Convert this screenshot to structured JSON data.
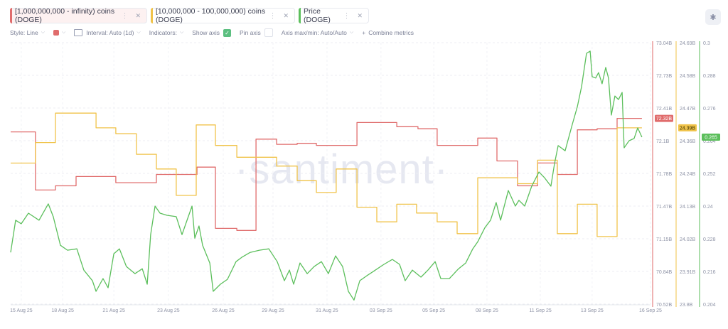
{
  "metrics": [
    {
      "label": "[1,000,000,000 - infinity) coins (DOGE)",
      "color": "#e06c6c"
    },
    {
      "label": "[10,000,000 - 100,000,000) coins (DOGE)",
      "color": "#f0c34a"
    },
    {
      "label": "Price (DOGE)",
      "color": "#5cbf5c"
    }
  ],
  "toolbar": {
    "style": "Style: Line",
    "interval": "Interval: Auto (1d)",
    "indicators": "Indicators:",
    "show_axis": "Show axis",
    "show_axis_checked": true,
    "pin_axis": "Pin axis",
    "pin_axis_checked": false,
    "axis_maxmin": "Axis max/min: Auto/Auto",
    "combine": "Combine metrics"
  },
  "watermark": "·santiment·",
  "chart_data": {
    "type": "line",
    "x_unit": "days since 15 Aug 25",
    "x_ticks": [
      {
        "label": "15 Aug 25",
        "x": 0.53
      },
      {
        "label": "18 Aug 25",
        "x": 2.6
      },
      {
        "label": "21 Aug 25",
        "x": 5.16
      },
      {
        "label": "23 Aug 25",
        "x": 7.89
      },
      {
        "label": "26 Aug 25",
        "x": 10.63
      },
      {
        "label": "29 Aug 25",
        "x": 13.12
      },
      {
        "label": "31 Aug 25",
        "x": 15.82
      },
      {
        "label": "03 Sep 25",
        "x": 18.52
      },
      {
        "label": "05 Sep 25",
        "x": 21.16
      },
      {
        "label": "08 Sep 25",
        "x": 23.82
      },
      {
        "label": "11 Sep 25",
        "x": 26.49
      },
      {
        "label": "13 Sep 25",
        "x": 29.08
      },
      {
        "label": "16 Sep 25",
        "x": 32
      }
    ],
    "xlim": [
      0,
      32
    ],
    "series": [
      {
        "name": "[1,000,000,000 - infinity) coins (DOGE)",
        "color": "#e06c6c",
        "step": true,
        "ylim": [
          70.52,
          73.04
        ],
        "y_ticks": [
          "73.04B",
          "72.73B",
          "72.41B",
          "72.1B",
          "71.78B",
          "71.47B",
          "71.15B",
          "70.84B",
          "70.52B"
        ],
        "last_label": "72.32B",
        "points": [
          [
            0,
            72.18
          ],
          [
            1.24,
            71.62
          ],
          [
            2.24,
            71.66
          ],
          [
            3.27,
            71.75
          ],
          [
            5.26,
            71.69
          ],
          [
            7.29,
            71.77
          ],
          [
            9.32,
            71.84
          ],
          [
            10.24,
            71.25
          ],
          [
            11.31,
            71.23
          ],
          [
            12.27,
            72.11
          ],
          [
            13.3,
            72.06
          ],
          [
            14.33,
            72.07
          ],
          [
            15.29,
            72.05
          ],
          [
            17.32,
            72.27
          ],
          [
            19.31,
            72.23
          ],
          [
            20.37,
            72.21
          ],
          [
            21.33,
            72.05
          ],
          [
            23.36,
            72.12
          ],
          [
            24.32,
            71.9
          ],
          [
            25.35,
            71.66
          ],
          [
            26.35,
            71.88
          ],
          [
            27.34,
            71.77
          ],
          [
            28.34,
            72.2
          ],
          [
            29.33,
            72.21
          ],
          [
            30.33,
            72.31
          ],
          [
            31.57,
            72.31
          ]
        ]
      },
      {
        "name": "[10,000,000 - 100,000,000) coins (DOGE)",
        "color": "#f0c34a",
        "step": true,
        "ylim": [
          23.8,
          24.69
        ],
        "y_ticks": [
          "24.69B",
          "24.58B",
          "24.47B",
          "24.36B",
          "24.24B",
          "24.13B",
          "24.02B",
          "23.91B",
          "23.8B"
        ],
        "last_label": "24.39B",
        "points": [
          [
            0,
            24.28
          ],
          [
            1.24,
            24.35
          ],
          [
            2.24,
            24.45
          ],
          [
            4.27,
            24.4
          ],
          [
            5.26,
            24.38
          ],
          [
            6.29,
            24.31
          ],
          [
            7.29,
            24.26
          ],
          [
            8.28,
            24.17
          ],
          [
            9.28,
            24.41
          ],
          [
            10.24,
            24.34
          ],
          [
            11.31,
            24.3
          ],
          [
            13.3,
            24.27
          ],
          [
            14.33,
            24.22
          ],
          [
            15.29,
            24.18
          ],
          [
            16.28,
            24.26
          ],
          [
            17.32,
            24.13
          ],
          [
            18.31,
            24.08
          ],
          [
            19.31,
            24.14
          ],
          [
            20.3,
            24.11
          ],
          [
            21.33,
            24.08
          ],
          [
            22.33,
            24.04
          ],
          [
            23.36,
            24.23
          ],
          [
            24.32,
            24.23
          ],
          [
            25.35,
            24.21
          ],
          [
            26.35,
            24.29
          ],
          [
            27.34,
            24.04
          ],
          [
            28.34,
            24.14
          ],
          [
            29.33,
            24.03
          ],
          [
            30.33,
            24.4
          ],
          [
            31.57,
            24.4
          ]
        ]
      },
      {
        "name": "Price (DOGE)",
        "color": "#5cbf5c",
        "step": false,
        "ylim": [
          0.204,
          0.3
        ],
        "y_ticks": [
          "0.3",
          "0.288",
          "0.276",
          "0.264",
          "0.252",
          "0.24",
          "0.228",
          "0.216",
          "0.204"
        ],
        "last_label": "0.265",
        "points": [
          [
            0,
            0.223
          ],
          [
            0.25,
            0.2348
          ],
          [
            0.53,
            0.2335
          ],
          [
            0.89,
            0.2374
          ],
          [
            1.42,
            0.2348
          ],
          [
            1.88,
            0.2408
          ],
          [
            2.13,
            0.2361
          ],
          [
            2.49,
            0.2256
          ],
          [
            2.84,
            0.2238
          ],
          [
            3.31,
            0.2243
          ],
          [
            3.66,
            0.2165
          ],
          [
            4.09,
            0.2126
          ],
          [
            4.27,
            0.2087
          ],
          [
            4.62,
            0.2134
          ],
          [
            4.87,
            0.21
          ],
          [
            5.16,
            0.2225
          ],
          [
            5.44,
            0.2243
          ],
          [
            5.79,
            0.2178
          ],
          [
            6.22,
            0.2152
          ],
          [
            6.58,
            0.217
          ],
          [
            6.83,
            0.2113
          ],
          [
            7.0,
            0.2295
          ],
          [
            7.22,
            0.24
          ],
          [
            7.47,
            0.2374
          ],
          [
            7.82,
            0.2366
          ],
          [
            8.28,
            0.2361
          ],
          [
            8.57,
            0.2295
          ],
          [
            8.82,
            0.2348
          ],
          [
            9.07,
            0.24
          ],
          [
            9.21,
            0.2282
          ],
          [
            9.42,
            0.2327
          ],
          [
            9.6,
            0.2256
          ],
          [
            9.96,
            0.2191
          ],
          [
            10.13,
            0.2087
          ],
          [
            10.49,
            0.2113
          ],
          [
            10.84,
            0.2131
          ],
          [
            11.27,
            0.2196
          ],
          [
            11.56,
            0.2212
          ],
          [
            11.98,
            0.223
          ],
          [
            12.44,
            0.2238
          ],
          [
            12.91,
            0.2243
          ],
          [
            13.33,
            0.2196
          ],
          [
            13.69,
            0.2126
          ],
          [
            13.94,
            0.2165
          ],
          [
            14.15,
            0.2113
          ],
          [
            14.47,
            0.2191
          ],
          [
            14.83,
            0.2152
          ],
          [
            15.18,
            0.2178
          ],
          [
            15.54,
            0.2196
          ],
          [
            15.89,
            0.2152
          ],
          [
            16.25,
            0.2217
          ],
          [
            16.6,
            0.2178
          ],
          [
            16.89,
            0.2087
          ],
          [
            17.17,
            0.2055
          ],
          [
            17.46,
            0.2126
          ],
          [
            17.81,
            0.2144
          ],
          [
            18.24,
            0.2165
          ],
          [
            18.67,
            0.2186
          ],
          [
            19.09,
            0.2204
          ],
          [
            19.45,
            0.2186
          ],
          [
            19.73,
            0.2126
          ],
          [
            20.09,
            0.2165
          ],
          [
            20.52,
            0.2139
          ],
          [
            20.87,
            0.2165
          ],
          [
            21.23,
            0.2196
          ],
          [
            21.51,
            0.2134
          ],
          [
            21.94,
            0.2134
          ],
          [
            22.4,
            0.217
          ],
          [
            22.76,
            0.2191
          ],
          [
            23.11,
            0.2243
          ],
          [
            23.36,
            0.2269
          ],
          [
            23.72,
            0.2321
          ],
          [
            24.0,
            0.2348
          ],
          [
            24.28,
            0.2413
          ],
          [
            24.5,
            0.2348
          ],
          [
            24.89,
            0.2457
          ],
          [
            25.24,
            0.24
          ],
          [
            25.42,
            0.2421
          ],
          [
            25.71,
            0.24
          ],
          [
            26.06,
            0.2473
          ],
          [
            26.42,
            0.2525
          ],
          [
            26.7,
            0.2504
          ],
          [
            27.02,
            0.2473
          ],
          [
            27.2,
            0.2556
          ],
          [
            27.38,
            0.2622
          ],
          [
            27.73,
            0.2603
          ],
          [
            28.09,
            0.27
          ],
          [
            28.34,
            0.2765
          ],
          [
            28.55,
            0.2838
          ],
          [
            28.8,
            0.2961
          ],
          [
            28.98,
            0.2969
          ],
          [
            29.08,
            0.2875
          ],
          [
            29.26,
            0.287
          ],
          [
            29.4,
            0.289
          ],
          [
            29.58,
            0.2849
          ],
          [
            29.76,
            0.2909
          ],
          [
            29.9,
            0.287
          ],
          [
            30.04,
            0.2734
          ],
          [
            30.22,
            0.2804
          ],
          [
            30.4,
            0.2791
          ],
          [
            30.58,
            0.2817
          ],
          [
            30.68,
            0.2614
          ],
          [
            30.93,
            0.264
          ],
          [
            31.18,
            0.2648
          ],
          [
            31.36,
            0.2687
          ],
          [
            31.57,
            0.2653
          ]
        ]
      }
    ],
    "grid": true,
    "legend": "top-left"
  }
}
